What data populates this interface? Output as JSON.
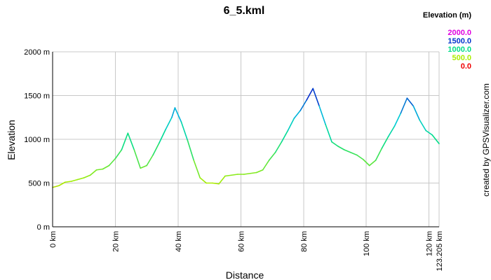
{
  "chart_data": {
    "type": "line",
    "title": "6_5.kml",
    "xlabel": "Distance",
    "ylabel": "Elevation",
    "xlim": [
      0,
      123.205
    ],
    "ylim": [
      0,
      2000
    ],
    "grid": true,
    "x_ticks": [
      {
        "value": 0,
        "label": "0 km"
      },
      {
        "value": 20,
        "label": "20 km"
      },
      {
        "value": 40,
        "label": "40 km"
      },
      {
        "value": 60,
        "label": "60 km"
      },
      {
        "value": 80,
        "label": "80 km"
      },
      {
        "value": 100,
        "label": "100 km"
      },
      {
        "value": 120,
        "label": "120 km"
      },
      {
        "value": 123.205,
        "label": "123.205 km"
      }
    ],
    "y_ticks": [
      {
        "value": 0,
        "label": "0 m"
      },
      {
        "value": 500,
        "label": "500 m"
      },
      {
        "value": 1000,
        "label": "1000 m"
      },
      {
        "value": 1500,
        "label": "1500 m"
      },
      {
        "value": 2000,
        "label": "2000 m"
      }
    ],
    "legend": {
      "title": "Elevation (m)",
      "placement": "top-right",
      "entries": [
        {
          "label": "2000.0",
          "color": "#e000e0"
        },
        {
          "label": "1500.0",
          "color": "#0033cc"
        },
        {
          "label": "1000.0",
          "color": "#00dd88"
        },
        {
          "label": "500.0",
          "color": "#aaee00"
        },
        {
          "label": "0.0",
          "color": "#ee0000"
        }
      ]
    },
    "credit": "created by GPSVisualizer.com",
    "series": [
      {
        "x": [
          0,
          2,
          4,
          6,
          8,
          10,
          12,
          14,
          16,
          18,
          20,
          22,
          24,
          26,
          28,
          30,
          32,
          34,
          36,
          38,
          39,
          41,
          43,
          45,
          47,
          49,
          51,
          53,
          55,
          57,
          59,
          61,
          63,
          65,
          67,
          69,
          71,
          73,
          75,
          77,
          79,
          81,
          83,
          85,
          87,
          89,
          91,
          93,
          95,
          97,
          99,
          101,
          103,
          105,
          107,
          109,
          111,
          113,
          115,
          117,
          119,
          121,
          123.205
        ],
        "values": [
          450,
          470,
          510,
          520,
          540,
          560,
          590,
          650,
          660,
          700,
          780,
          880,
          1070,
          880,
          670,
          700,
          820,
          960,
          1110,
          1250,
          1360,
          1200,
          990,
          760,
          560,
          500,
          500,
          490,
          580,
          590,
          600,
          600,
          610,
          620,
          650,
          760,
          850,
          970,
          1100,
          1240,
          1330,
          1450,
          1580,
          1380,
          1170,
          970,
          920,
          880,
          850,
          820,
          770,
          700,
          760,
          900,
          1030,
          1150,
          1300,
          1470,
          1380,
          1220,
          1100,
          1050,
          950
        ]
      }
    ]
  }
}
